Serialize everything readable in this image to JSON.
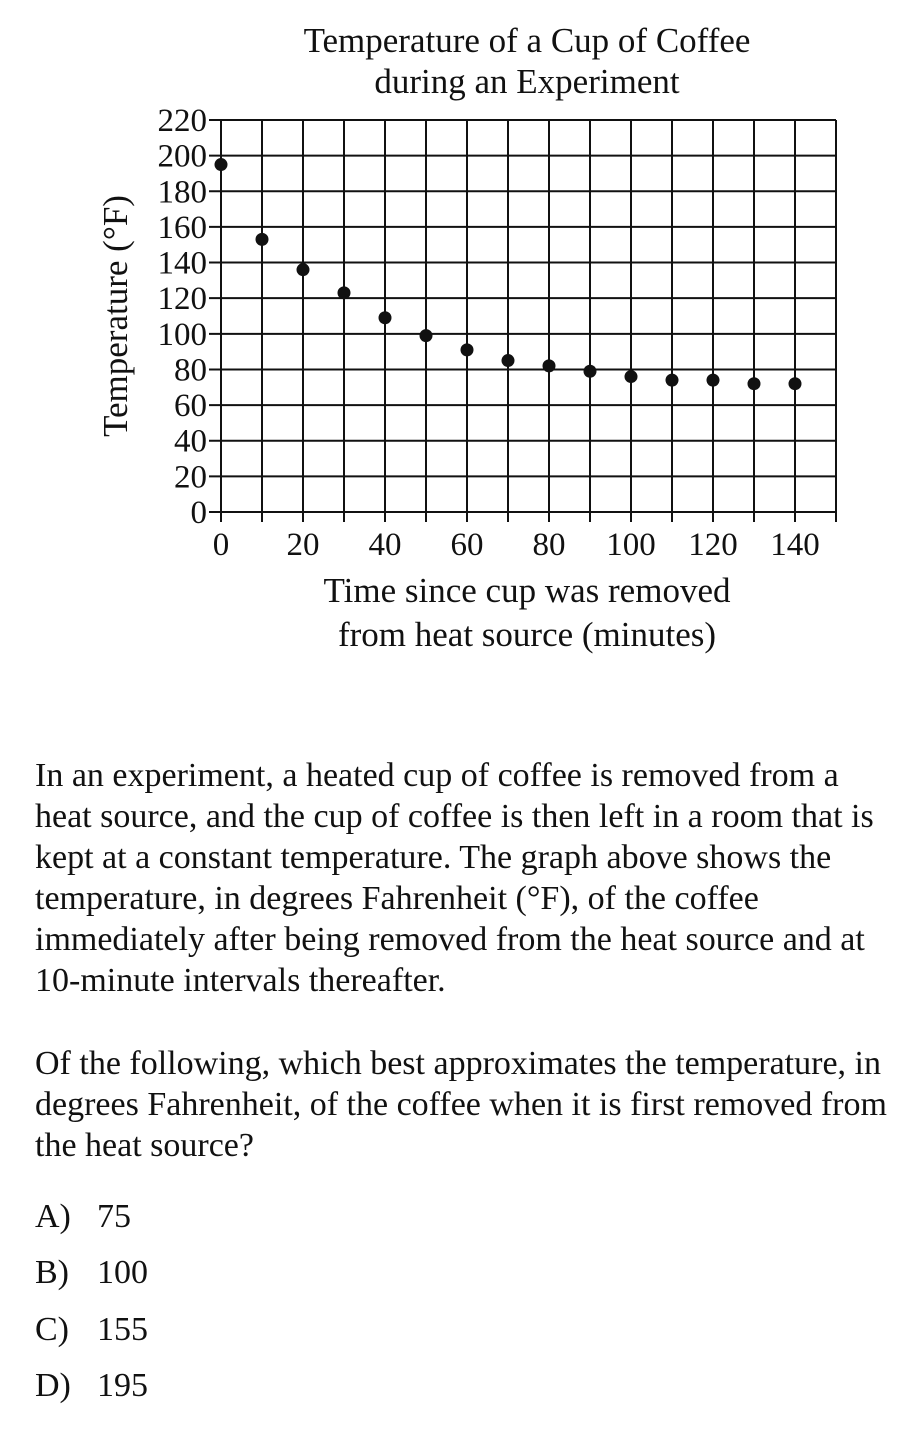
{
  "chart_data": {
    "type": "scatter",
    "title": [
      "Temperature of a Cup of Coffee",
      "during an Experiment"
    ],
    "xlabel": [
      "Time since cup was removed",
      "from heat source (minutes)"
    ],
    "ylabel": "Temperature (°F)",
    "xlim": [
      0,
      150
    ],
    "ylim": [
      0,
      220
    ],
    "x_ticks": [
      0,
      20,
      40,
      60,
      80,
      100,
      120,
      140
    ],
    "y_ticks": [
      0,
      20,
      40,
      60,
      80,
      100,
      120,
      140,
      160,
      180,
      200,
      220
    ],
    "grid": true,
    "x": [
      0,
      10,
      20,
      30,
      40,
      50,
      60,
      70,
      80,
      90,
      100,
      110,
      120,
      130,
      140
    ],
    "y": [
      195,
      153,
      136,
      123,
      109,
      99,
      91,
      85,
      82,
      79,
      76,
      74,
      74,
      72,
      72
    ]
  },
  "question": {
    "paragraph1": "In an experiment, a heated cup of coffee is removed from a heat source, and the cup of coffee is then left in a room that is kept at a constant temperature. The graph above shows the temperature, in degrees Fahrenheit (°F), of the coffee immediately after being removed from the heat source and at 10-minute intervals thereafter.",
    "paragraph2": "Of the following, which best approximates the temperature, in degrees Fahrenheit, of the coffee when it is first removed from the heat source?",
    "choices": [
      {
        "letter": "A)",
        "value": "75"
      },
      {
        "letter": "B)",
        "value": "100"
      },
      {
        "letter": "C)",
        "value": "155"
      },
      {
        "letter": "D)",
        "value": "195"
      }
    ]
  }
}
